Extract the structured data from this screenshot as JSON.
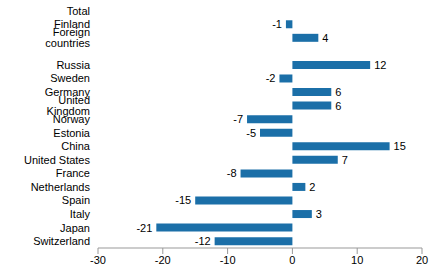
{
  "chart_data": {
    "type": "bar",
    "orientation": "horizontal",
    "categories": [
      "Total",
      "Finland",
      "Foreign countries",
      null,
      "Russia",
      "Sweden",
      "Germany",
      "United Kingdom",
      "Norway",
      "Estonia",
      "China",
      "United States",
      "France",
      "Netherlands",
      "Spain",
      "Italy",
      "Japan",
      "Switzerland"
    ],
    "values": [
      0,
      -1,
      4,
      null,
      12,
      -2,
      6,
      6,
      -7,
      -5,
      15,
      7,
      -8,
      2,
      -15,
      3,
      -21,
      -12
    ],
    "color": "#1b6fa8",
    "xlim": [
      -30,
      20
    ],
    "xticks": [
      -30,
      -20,
      -10,
      0,
      10,
      20
    ],
    "grid": false,
    "data_labels": true
  }
}
